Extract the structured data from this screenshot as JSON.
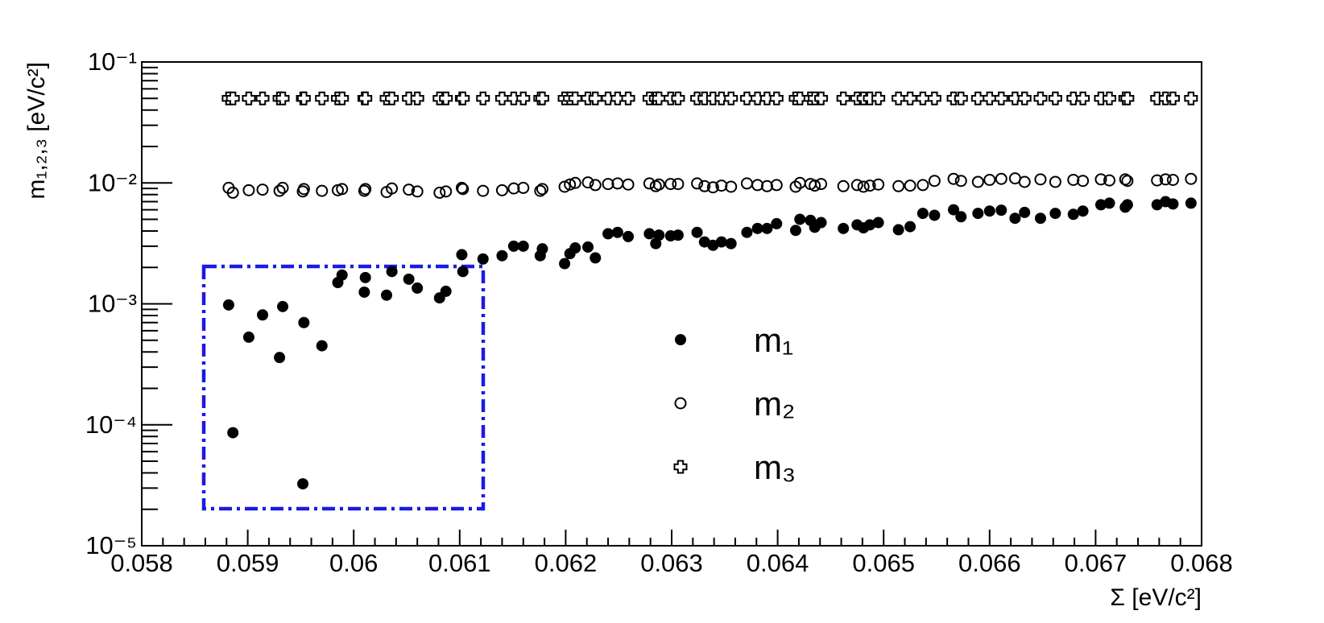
{
  "chart_data": {
    "type": "scatter",
    "x_label": "Σ [eV/c²]",
    "y_label": "m₁,₂,₃ [eV/c²]",
    "log_y": true,
    "xlim": [
      0.058,
      0.068
    ],
    "xticks": [
      0.058,
      0.059,
      0.06,
      0.061,
      0.062,
      0.063,
      0.064,
      0.065,
      0.066,
      0.067,
      0.068
    ],
    "ylim": [
      1e-05,
      0.1
    ],
    "yticks": [
      {
        "value": 1e-05,
        "label": "10⁻⁵"
      },
      {
        "value": 0.0001,
        "label": "10⁻⁴"
      },
      {
        "value": 0.001,
        "label": "10⁻³"
      },
      {
        "value": 0.01,
        "label": "10⁻²"
      },
      {
        "value": 0.1,
        "label": "10⁻¹"
      }
    ],
    "x": [
      0.05882,
      0.05886,
      0.05901,
      0.05914,
      0.0593,
      0.05933,
      0.05952,
      0.05953,
      0.0597,
      0.05985,
      0.05989,
      0.0601,
      0.06011,
      0.06031,
      0.06036,
      0.06052,
      0.0606,
      0.06081,
      0.06087,
      0.06102,
      0.06103,
      0.06122,
      0.0614,
      0.06151,
      0.0616,
      0.06176,
      0.06178,
      0.06199,
      0.06204,
      0.06209,
      0.06221,
      0.06228,
      0.0624,
      0.06249,
      0.06259,
      0.06279,
      0.06285,
      0.06288,
      0.06299,
      0.06306,
      0.06324,
      0.06331,
      0.06339,
      0.06347,
      0.06356,
      0.06371,
      0.06381,
      0.0639,
      0.06399,
      0.06417,
      0.06421,
      0.06431,
      0.06435,
      0.06441,
      0.06462,
      0.06475,
      0.06481,
      0.06487,
      0.06495,
      0.06514,
      0.06525,
      0.06537,
      0.06548,
      0.06566,
      0.06573,
      0.06589,
      0.066,
      0.06611,
      0.06624,
      0.06633,
      0.06648,
      0.06662,
      0.06679,
      0.06688,
      0.06705,
      0.06713,
      0.06728,
      0.0673,
      0.06758,
      0.06766,
      0.06773,
      0.0679
    ],
    "series": [
      {
        "name": "m₁",
        "color": "#000000",
        "marker": "filled-circle",
        "values": [
          0.00098,
          8.6e-05,
          0.00053,
          0.00081,
          0.00036,
          0.00095,
          3.25e-05,
          0.0007,
          0.00045,
          0.0015,
          0.00173,
          0.00125,
          0.00165,
          0.00118,
          0.00185,
          0.0016,
          0.00135,
          0.00112,
          0.00127,
          0.00255,
          0.00185,
          0.00235,
          0.0025,
          0.003,
          0.003,
          0.0025,
          0.00285,
          0.00215,
          0.0026,
          0.0029,
          0.00295,
          0.0024,
          0.0038,
          0.0039,
          0.0036,
          0.0038,
          0.00315,
          0.0037,
          0.00365,
          0.0037,
          0.0039,
          0.00325,
          0.00305,
          0.00325,
          0.00315,
          0.0039,
          0.0042,
          0.0042,
          0.0046,
          0.00405,
          0.005,
          0.0049,
          0.0043,
          0.0047,
          0.0042,
          0.0045,
          0.00425,
          0.0045,
          0.0047,
          0.0041,
          0.00435,
          0.0056,
          0.0054,
          0.006,
          0.00525,
          0.0056,
          0.00585,
          0.00595,
          0.0051,
          0.0057,
          0.0051,
          0.0056,
          0.0055,
          0.00585,
          0.0066,
          0.0068,
          0.0063,
          0.0066,
          0.0066,
          0.007,
          0.0067,
          0.0068
        ]
      },
      {
        "name": "m₂",
        "color": "#000000",
        "marker": "open-circle",
        "values": [
          0.0091,
          0.0083,
          0.0087,
          0.0088,
          0.0086,
          0.0091,
          0.0085,
          0.0089,
          0.0086,
          0.0087,
          0.0089,
          0.0086,
          0.0089,
          0.0084,
          0.009,
          0.0088,
          0.0085,
          0.0083,
          0.0085,
          0.0091,
          0.0089,
          0.0086,
          0.0087,
          0.009,
          0.0091,
          0.0086,
          0.0089,
          0.0093,
          0.0097,
          0.01,
          0.0101,
          0.0096,
          0.0098,
          0.0099,
          0.0097,
          0.0099,
          0.0094,
          0.0097,
          0.0098,
          0.0098,
          0.0099,
          0.0094,
          0.0092,
          0.0095,
          0.0093,
          0.0099,
          0.0096,
          0.0094,
          0.0096,
          0.0093,
          0.01,
          0.0098,
          0.0095,
          0.0098,
          0.0094,
          0.0096,
          0.0093,
          0.0095,
          0.0097,
          0.0094,
          0.0095,
          0.0096,
          0.0104,
          0.0108,
          0.0104,
          0.0102,
          0.0106,
          0.0108,
          0.0109,
          0.0102,
          0.0107,
          0.0102,
          0.0106,
          0.0104,
          0.0107,
          0.0105,
          0.0107,
          0.0104,
          0.0105,
          0.0107,
          0.0106,
          0.0108
        ]
      },
      {
        "name": "m₃",
        "color": "#000000",
        "marker": "open-cross",
        "values": [
          0.05,
          0.05,
          0.05,
          0.05,
          0.05,
          0.05,
          0.05,
          0.05,
          0.05,
          0.05,
          0.05,
          0.05,
          0.05,
          0.05,
          0.05,
          0.05,
          0.05,
          0.05,
          0.05,
          0.05,
          0.05,
          0.05,
          0.05,
          0.05,
          0.05,
          0.05,
          0.05,
          0.05,
          0.05,
          0.05,
          0.05,
          0.05,
          0.05,
          0.05,
          0.05,
          0.05,
          0.05,
          0.05,
          0.05,
          0.05,
          0.05,
          0.05,
          0.05,
          0.05,
          0.05,
          0.05,
          0.05,
          0.05,
          0.05,
          0.05,
          0.05,
          0.05,
          0.05,
          0.05,
          0.05,
          0.05,
          0.05,
          0.05,
          0.05,
          0.05,
          0.05,
          0.05,
          0.05,
          0.05,
          0.05,
          0.05,
          0.05,
          0.05,
          0.05,
          0.05,
          0.05,
          0.05,
          0.05,
          0.05,
          0.05,
          0.05,
          0.05,
          0.05,
          0.05,
          0.05,
          0.05,
          0.05
        ]
      }
    ]
  }
}
